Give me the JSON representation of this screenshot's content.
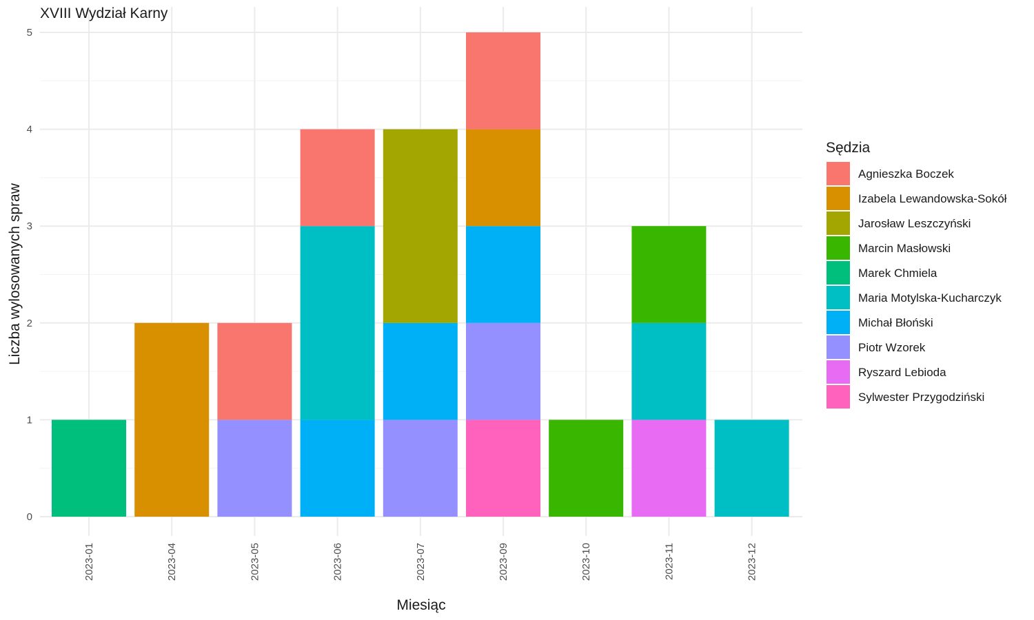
{
  "chart_data": {
    "type": "bar",
    "stacked": true,
    "title": "XVIII Wydział Karny",
    "xlabel": "Miesiąc",
    "ylabel": "Liczba wylosowanych spraw",
    "ylim": [
      0,
      5
    ],
    "y_ticks": [
      "0",
      "1",
      "2",
      "3",
      "4",
      "5"
    ],
    "grid": true,
    "legend_title": "Sędzia",
    "legend_position": "right",
    "categories": [
      "2023-01",
      "2023-04",
      "2023-05",
      "2023-06",
      "2023-07",
      "2023-09",
      "2023-10",
      "2023-11",
      "2023-12"
    ],
    "series": [
      {
        "name": "Agnieszka Boczek",
        "color": "#F8766D",
        "values": [
          0,
          0,
          1,
          1,
          0,
          1,
          0,
          0,
          0
        ]
      },
      {
        "name": "Izabela Lewandowska-Sokół",
        "color": "#D89000",
        "values": [
          0,
          2,
          0,
          0,
          0,
          1,
          0,
          0,
          0
        ]
      },
      {
        "name": "Jarosław Leszczyński",
        "color": "#A3A500",
        "values": [
          0,
          0,
          0,
          0,
          2,
          0,
          0,
          0,
          0
        ]
      },
      {
        "name": "Marcin Masłowski",
        "color": "#39B600",
        "values": [
          0,
          0,
          0,
          0,
          0,
          0,
          1,
          1,
          0
        ]
      },
      {
        "name": "Marek Chmiela",
        "color": "#00BF7D",
        "values": [
          1,
          0,
          0,
          0,
          0,
          0,
          0,
          0,
          0
        ]
      },
      {
        "name": "Maria Motylska-Kucharczyk",
        "color": "#00BFC4",
        "values": [
          0,
          0,
          0,
          2,
          0,
          0,
          0,
          1,
          1
        ]
      },
      {
        "name": "Michał Błoński",
        "color": "#00B0F6",
        "values": [
          0,
          0,
          0,
          1,
          1,
          1,
          0,
          0,
          0
        ]
      },
      {
        "name": "Piotr Wzorek",
        "color": "#9590FF",
        "values": [
          0,
          0,
          1,
          0,
          1,
          1,
          0,
          0,
          0
        ]
      },
      {
        "name": "Ryszard Lebioda",
        "color": "#E76BF3",
        "values": [
          0,
          0,
          0,
          0,
          0,
          0,
          0,
          1,
          0
        ]
      },
      {
        "name": "Sylwester Przygodziński",
        "color": "#FF62BC",
        "values": [
          0,
          0,
          0,
          0,
          0,
          1,
          0,
          0,
          0
        ]
      }
    ]
  }
}
